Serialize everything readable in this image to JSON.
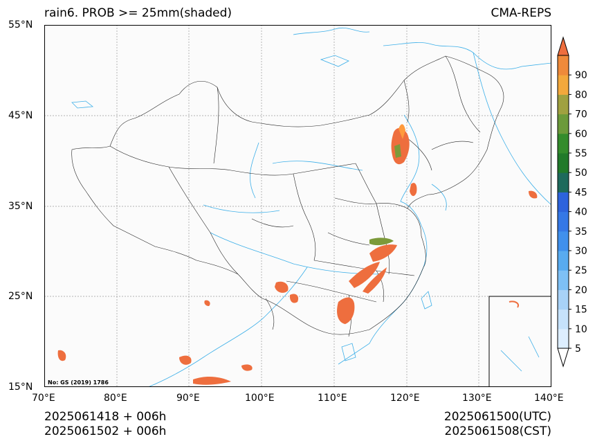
{
  "title": {
    "left": "rain6. PROB >= 25mm(shaded)",
    "right": "CMA-REPS"
  },
  "footer": {
    "init_line1": "2025061418  +  006h",
    "init_line2": "2025061502  +  006h",
    "valid_utc": "2025061500(UTC)",
    "valid_cst": "2025061508(CST)"
  },
  "map": {
    "lat_labels": [
      "55°N",
      "45°N",
      "35°N",
      "25°N",
      "15°N"
    ],
    "lon_labels": [
      "70°E",
      "80°E",
      "90°E",
      "100°E",
      "110°E",
      "120°E",
      "130°E",
      "140°E"
    ],
    "map_note": "No: GS (2019) 1786",
    "colors": {
      "coast": "#3aaee8",
      "border": "#222222",
      "grid": "#999999",
      "precip_main": "#ee6e3e",
      "precip_light": "#ff9a3c",
      "precip_green": "#7c9a3a"
    }
  },
  "colorbar": {
    "levels": [
      "5",
      "10",
      "15",
      "20",
      "25",
      "30",
      "35",
      "40",
      "45",
      "50",
      "55",
      "60",
      "70",
      "80",
      "90"
    ],
    "colors": [
      "#ddeeff",
      "#c6e2fb",
      "#a8d2f7",
      "#7ec0f5",
      "#58abf0",
      "#4090ec",
      "#3578e6",
      "#2d63dc",
      "#1e6a5c",
      "#217a2a",
      "#348c2c",
      "#6c9a3a",
      "#a0a140",
      "#f3a83c",
      "#ef8a3a"
    ],
    "over_color": "#ee6e3e",
    "under_color": "#ffffff"
  }
}
